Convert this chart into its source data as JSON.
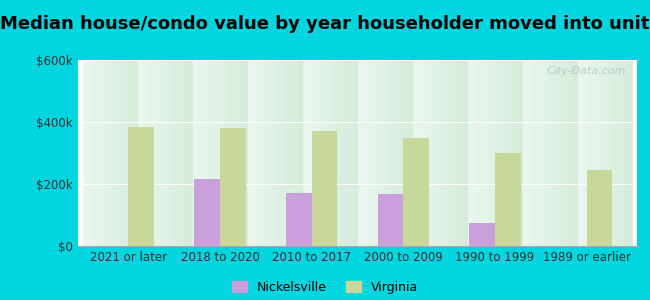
{
  "title": "Median house/condo value by year householder moved into unit",
  "categories": [
    "2021 or later",
    "2018 to 2020",
    "2010 to 2017",
    "2000 to 2009",
    "1990 to 1999",
    "1989 or earlier"
  ],
  "nickelsville": [
    0,
    215000,
    170000,
    168000,
    75000,
    0
  ],
  "virginia": [
    385000,
    380000,
    370000,
    350000,
    300000,
    245000
  ],
  "nickelsville_color": "#c9a0dc",
  "virginia_color": "#c8d89a",
  "background_outer": "#00d5e0",
  "background_inner_top": "#eaf7f0",
  "background_inner_bottom": "#d4edda",
  "ylim": [
    0,
    600000
  ],
  "yticks": [
    0,
    200000,
    400000,
    600000
  ],
  "ytick_labels": [
    "$0",
    "$200k",
    "$400k",
    "$600k"
  ],
  "bar_width": 0.28,
  "title_fontsize": 13,
  "tick_fontsize": 8.5,
  "legend_labels": [
    "Nickelsville",
    "Virginia"
  ],
  "watermark": "City-Data.com"
}
